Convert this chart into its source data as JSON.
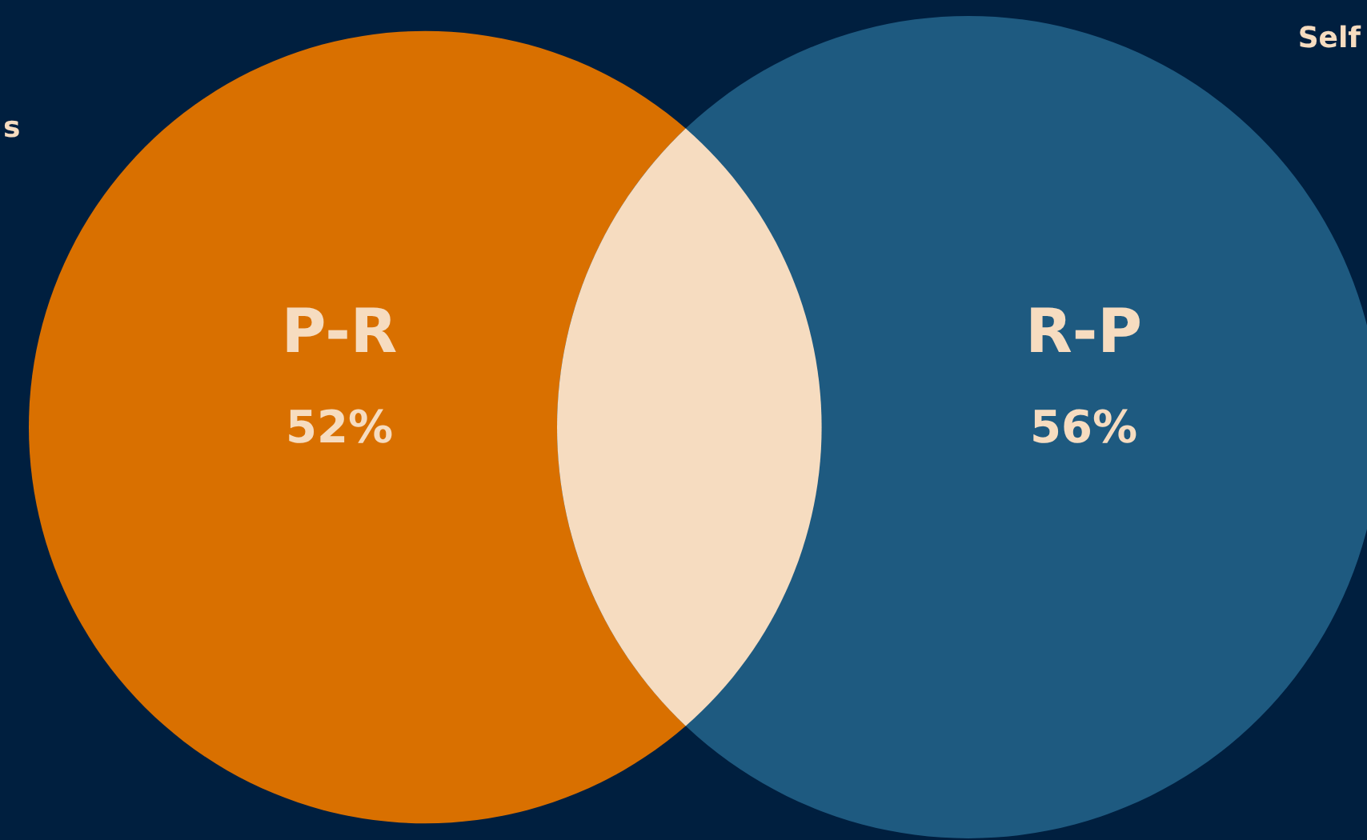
{
  "chart_data": {
    "type": "other",
    "categories": [
      "P-R",
      "R-P"
    ],
    "values": [
      52,
      56
    ],
    "value_labels": [
      "52%",
      "56%"
    ],
    "colors": [
      "#d97000",
      "#1e5a80"
    ],
    "annotations": [
      "s",
      "Self"
    ]
  }
}
